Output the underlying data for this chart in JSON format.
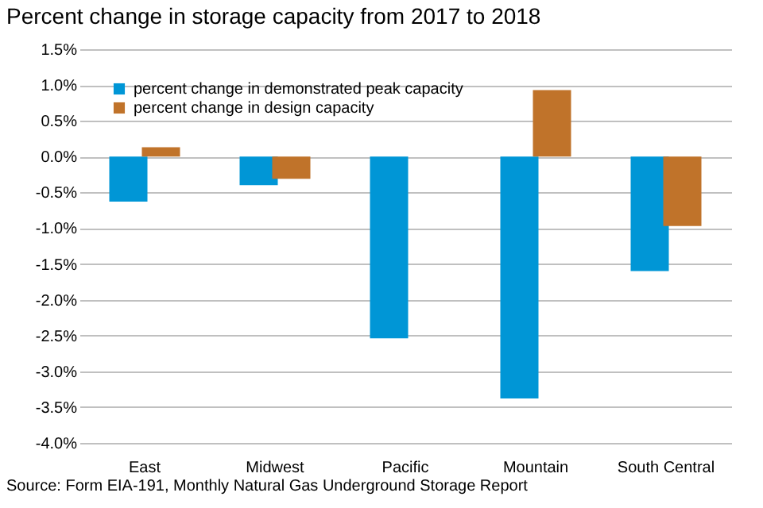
{
  "chart_data": {
    "type": "bar",
    "title": "Percent change in storage capacity from 2017 to 2018",
    "categories": [
      "East",
      "Midwest",
      "Pacific",
      "Mountain",
      "South Central"
    ],
    "series": [
      {
        "name": "percent change in demonstrated peak capacity",
        "color": "#0096d6",
        "values": [
          -0.63,
          -0.4,
          -2.54,
          -3.38,
          -1.6
        ]
      },
      {
        "name": "percent change in design capacity",
        "color": "#c0732a",
        "values": [
          0.13,
          -0.31,
          0,
          0.93,
          -0.97
        ]
      }
    ],
    "ylim": [
      -4,
      1.5
    ],
    "yticks": [
      {
        "value": -4,
        "label": "-4.0%"
      },
      {
        "value": -3.5,
        "label": "-3.5%"
      },
      {
        "value": -3,
        "label": "-3.0%"
      },
      {
        "value": -2.5,
        "label": "-2.5%"
      },
      {
        "value": -2,
        "label": "-2.0%"
      },
      {
        "value": -1.5,
        "label": "-1.5%"
      },
      {
        "value": -1,
        "label": "-1.0%"
      },
      {
        "value": -0.5,
        "label": "-0.5%"
      },
      {
        "value": 0,
        "label": "0.0%"
      },
      {
        "value": 0.5,
        "label": "0.5%"
      },
      {
        "value": 1,
        "label": "1.0%"
      },
      {
        "value": 1.5,
        "label": "1.5%"
      }
    ],
    "grid": "y",
    "legend": "top left",
    "annotations": [
      "Source: Form EIA-191, Monthly Natural Gas Underground Storage Report"
    ]
  }
}
